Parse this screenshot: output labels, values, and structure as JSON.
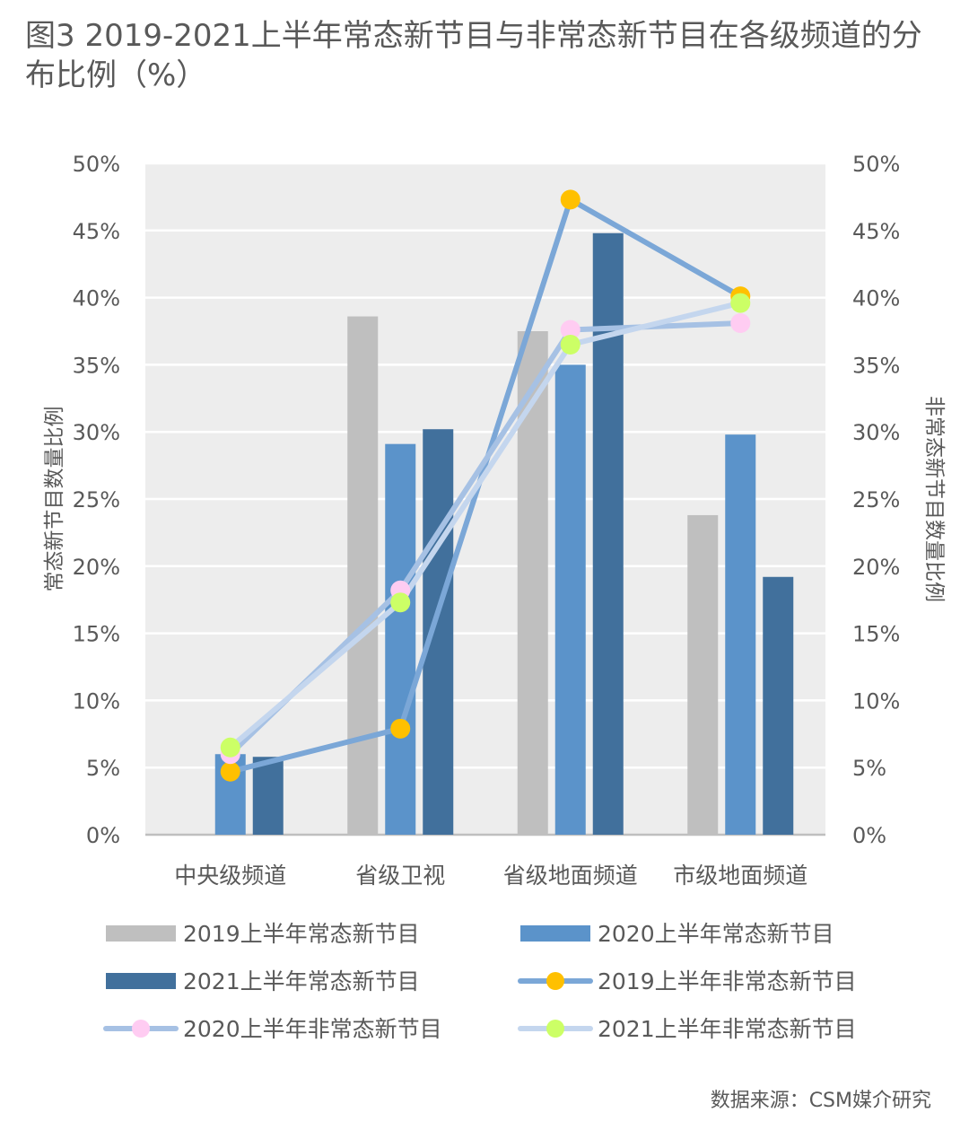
{
  "title": "图3  2019-2021上半年常态新节目与非常态新节目在各级频道的分布比例（%）",
  "source": "数据来源：CSM媒介研究",
  "chart_data": {
    "type": "bar",
    "categories": [
      "中央级频道",
      "省级卫视",
      "省级地面频道",
      "市级地面频道"
    ],
    "bar_series": [
      {
        "name": "2019上半年常态新节目",
        "values": [
          0,
          38.6,
          37.5,
          23.8
        ],
        "color": "#BFBFBF"
      },
      {
        "name": "2020上半年常态新节目",
        "values": [
          6.0,
          29.1,
          35.0,
          29.8
        ],
        "color": "#5B93CA"
      },
      {
        "name": "2021上半年常态新节目",
        "values": [
          5.8,
          30.2,
          44.8,
          19.2
        ],
        "color": "#41709C"
      }
    ],
    "line_series": [
      {
        "name": "2019上半年非常态新节目",
        "values": [
          4.7,
          7.9,
          47.3,
          40.1
        ],
        "line_color": "#7BA7D7",
        "marker_color": "#FFC000"
      },
      {
        "name": "2020上半年非常态新节目",
        "values": [
          6.0,
          18.2,
          37.6,
          38.1
        ],
        "line_color": "#A6C1E4",
        "marker_color": "#FFCCF2"
      },
      {
        "name": "2021上半年非常态新节目",
        "values": [
          6.5,
          17.3,
          36.5,
          39.6
        ],
        "line_color": "#C4D6EE",
        "marker_color": "#CCFF66"
      }
    ],
    "y_left": {
      "label": "常态新节目数量比例",
      "ticks": [
        "0%",
        "5%",
        "10%",
        "15%",
        "20%",
        "25%",
        "30%",
        "35%",
        "40%",
        "45%",
        "50%"
      ]
    },
    "y_right": {
      "label": "非常态新节目数量比例",
      "ticks": [
        "0%",
        "5%",
        "10%",
        "15%",
        "20%",
        "25%",
        "30%",
        "35%",
        "40%",
        "45%",
        "50%"
      ]
    },
    "ylim": [
      0,
      50
    ],
    "grid": true,
    "plot_background": "#EDEDED",
    "legend_position": "bottom"
  }
}
